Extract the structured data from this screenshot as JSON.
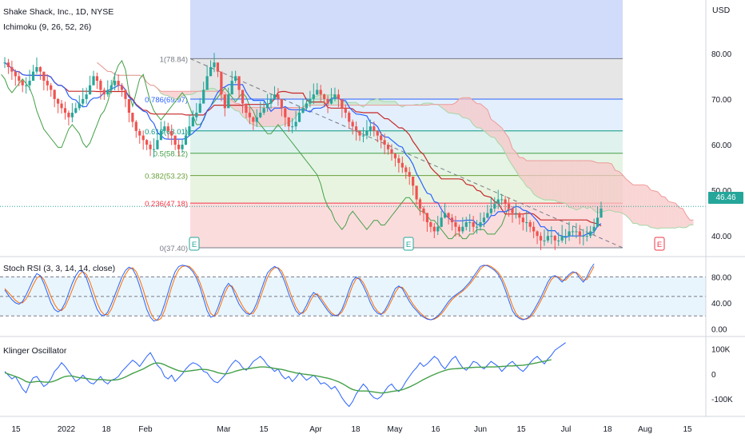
{
  "header": {
    "symbol_title": "Shake Shack, Inc., 1D, NYSE",
    "indicator_label": "Ichimoku (9, 26, 52, 26)",
    "currency": "USD"
  },
  "price_tag": {
    "value": "46.46",
    "color": "#26a69a"
  },
  "fibonacci": {
    "levels": [
      {
        "ratio": "1",
        "price": 78.84,
        "label": "1(78.84)",
        "color": "#787b86"
      },
      {
        "ratio": "0.786",
        "price": 69.97,
        "label": "0.786(69.97)",
        "color": "#2962ff"
      },
      {
        "ratio": "0.618",
        "price": 63.01,
        "label": "0.618(63.01)",
        "color": "#089981"
      },
      {
        "ratio": "0.5",
        "price": 58.12,
        "label": "0.5(58.12)",
        "color": "#43a047"
      },
      {
        "ratio": "0.382",
        "price": 53.23,
        "label": "0.382(53.23)",
        "color": "#689f38"
      },
      {
        "ratio": "0.236",
        "price": 47.18,
        "label": "0.236(47.18)",
        "color": "#f23645"
      },
      {
        "ratio": "0",
        "price": 37.4,
        "label": "0(37.40)",
        "color": "#787b86"
      }
    ],
    "bands": [
      "#d1dbfa",
      "#e6e6e6",
      "#e3effc",
      "#e0f2ee",
      "#e5f4e5",
      "#e8f4e0",
      "#fbdcdd"
    ]
  },
  "earnings_markers": [
    "E",
    "E",
    "E"
  ],
  "chart_data": [
    {
      "type": "candlestick",
      "title": "Shake Shack, Inc., 1D, NYSE",
      "y_axis": {
        "ticks": [
          40,
          50,
          60,
          70,
          80
        ],
        "tick_labels": [
          "40.00",
          "50.00",
          "60.00",
          "70.00",
          "80.00"
        ],
        "range": [
          36,
          91
        ],
        "unit": "USD"
      },
      "x_axis": {
        "tick_labels": [
          "15",
          "2022",
          "18",
          "Feb",
          "Mar",
          "15",
          "Apr",
          "18",
          "May",
          "16",
          "Jun",
          "15",
          "Jul",
          "18",
          "Aug",
          "15"
        ]
      },
      "last_price": 46.46,
      "closes": [
        78,
        77,
        76,
        75,
        74,
        73,
        73,
        74,
        76,
        77,
        76,
        74,
        73,
        72,
        70,
        69,
        68,
        67,
        66,
        67,
        68,
        69,
        70,
        71,
        73,
        75,
        74,
        72,
        71,
        72,
        73,
        74,
        73,
        72,
        70,
        67,
        65,
        63,
        62,
        61,
        60,
        59,
        59,
        61,
        63,
        64,
        63,
        62,
        60,
        59,
        60,
        62,
        64,
        66,
        67,
        69,
        72,
        75,
        77,
        78,
        76,
        71,
        68,
        71,
        74,
        75,
        72,
        69,
        67,
        66,
        65,
        66,
        67,
        68,
        69,
        70,
        71,
        70,
        68,
        66,
        64,
        64,
        65,
        67,
        68,
        69,
        70,
        71,
        72,
        71,
        70,
        69,
        70,
        71,
        70,
        68,
        67,
        65,
        64,
        63,
        62,
        62,
        63,
        64,
        63,
        62,
        61,
        60,
        59,
        58,
        57,
        56,
        55,
        54,
        53,
        51,
        48,
        46,
        45,
        43,
        42,
        41,
        42,
        44,
        45,
        44,
        43,
        42,
        41,
        42,
        43,
        43,
        42,
        42,
        43,
        44,
        45,
        46,
        47,
        48,
        48,
        47,
        46,
        45,
        45,
        44,
        43,
        43,
        42,
        41,
        40,
        39,
        39,
        40,
        40,
        39,
        39,
        40,
        40,
        41,
        41,
        41,
        40,
        40,
        40,
        41,
        42,
        44,
        46
      ],
      "ichimoku": {
        "tenkan_sen": "blue line",
        "kijun_sen": "red line",
        "chikou_span": "green line",
        "cloud_colors": [
          "#f7c7c7",
          "#c8e6c9"
        ]
      }
    },
    {
      "type": "line",
      "title": "Stoch RSI (3, 3, 14, 14, close)",
      "y_axis": {
        "tick_labels": [
          "80.00",
          "40.00",
          "0.00"
        ],
        "ticks": [
          80,
          40,
          0
        ],
        "range": [
          -8,
          110
        ],
        "bands": [
          20,
          50,
          80
        ]
      },
      "series": [
        {
          "name": "",
          "color": "#2962ff",
          "values": [
            60,
            52,
            45,
            40,
            38,
            42,
            52,
            64,
            76,
            85,
            82,
            70,
            55,
            40,
            30,
            26,
            30,
            40,
            55,
            70,
            82,
            90,
            88,
            78,
            62,
            45,
            30,
            22,
            20,
            26,
            38,
            52,
            66,
            80,
            90,
            95,
            92,
            82,
            66,
            48,
            30,
            18,
            12,
            14,
            22,
            38,
            56,
            74,
            88,
            96,
            98,
            97,
            94,
            88,
            78,
            64,
            46,
            28,
            18,
            20,
            32,
            48,
            62,
            70,
            64,
            50,
            38,
            30,
            24,
            22,
            28,
            40,
            56,
            72,
            86,
            92,
            96,
            93,
            84,
            70,
            54,
            40,
            28,
            22,
            26,
            36,
            48,
            56,
            52,
            44,
            36,
            28,
            22,
            20,
            22,
            30,
            44,
            60,
            74,
            80,
            76,
            66,
            54,
            40,
            30,
            24,
            22,
            28,
            38,
            50,
            62,
            66,
            62,
            52,
            42,
            34,
            28,
            22,
            18,
            15,
            14,
            16,
            20,
            26,
            34,
            42,
            48,
            52,
            56,
            60,
            66,
            72,
            80,
            88,
            96,
            98,
            97,
            94,
            90,
            84,
            74,
            60,
            44,
            28,
            20,
            16,
            14,
            16,
            20,
            28,
            38,
            48,
            60,
            72,
            80,
            82,
            78,
            72,
            78,
            84,
            88,
            86,
            78,
            72,
            80,
            92,
            100
          ]
        },
        {
          "name": "",
          "color": "#ff6d00",
          "values": [
            62,
            56,
            50,
            44,
            40,
            40,
            46,
            56,
            68,
            78,
            82,
            76,
            64,
            50,
            38,
            30,
            28,
            34,
            46,
            60,
            74,
            84,
            88,
            84,
            72,
            56,
            40,
            28,
            22,
            22,
            30,
            44,
            58,
            72,
            84,
            92,
            94,
            88,
            76,
            60,
            42,
            26,
            16,
            13,
            16,
            28,
            46,
            64,
            80,
            91,
            96,
            97,
            96,
            91,
            83,
            71,
            55,
            38,
            24,
            19,
            25,
            40,
            55,
            66,
            66,
            57,
            45,
            35,
            27,
            23,
            24,
            33,
            48,
            64,
            79,
            89,
            94,
            94,
            89,
            77,
            62,
            47,
            34,
            25,
            24,
            30,
            42,
            52,
            54,
            48,
            40,
            32,
            25,
            21,
            21,
            26,
            37,
            52,
            67,
            77,
            78,
            71,
            60,
            47,
            35,
            27,
            23,
            25,
            33,
            44,
            56,
            64,
            64,
            57,
            47,
            38,
            31,
            25,
            20,
            16,
            14,
            15,
            18,
            23,
            30,
            38,
            45,
            50,
            54,
            58,
            63,
            69,
            76,
            84,
            92,
            97,
            98,
            96,
            92,
            87,
            79,
            67,
            52,
            36,
            24,
            18,
            15,
            15,
            18,
            24,
            33,
            43,
            54,
            66,
            76,
            81,
            80,
            75,
            75,
            81,
            86,
            87,
            82,
            75,
            76,
            86,
            96
          ]
        }
      ]
    },
    {
      "type": "line",
      "title": "Klinger Oscillator",
      "y_axis": {
        "tick_labels": [
          "100K",
          "0",
          "-100K"
        ],
        "ticks": [
          100,
          0,
          -100
        ],
        "unit": "K",
        "range": [
          -160,
          140
        ]
      },
      "series": [
        {
          "name": "",
          "color": "#2962ff",
          "values": [
            10,
            -5,
            -20,
            -10,
            -35,
            -60,
            -75,
            -40,
            -15,
            -10,
            -30,
            -50,
            -40,
            -20,
            10,
            25,
            45,
            30,
            10,
            -10,
            -30,
            -20,
            -5,
            -20,
            -35,
            -40,
            -25,
            -10,
            -30,
            -40,
            -25,
            -20,
            -10,
            10,
            25,
            40,
            55,
            45,
            30,
            50,
            70,
            85,
            60,
            35,
            20,
            -10,
            -20,
            -5,
            -30,
            -15,
            0,
            20,
            35,
            45,
            40,
            30,
            10,
            5,
            -15,
            -30,
            -35,
            -20,
            -5,
            20,
            40,
            55,
            45,
            25,
            15,
            30,
            50,
            60,
            70,
            55,
            35,
            25,
            10,
            20,
            -5,
            -20,
            -10,
            -30,
            -15,
            5,
            -10,
            -25,
            -15,
            -5,
            -20,
            -40,
            -35,
            -45,
            -60,
            -50,
            -70,
            -95,
            -115,
            -130,
            -110,
            -80,
            -60,
            -40,
            -55,
            -80,
            -95,
            -100,
            -90,
            -70,
            -50,
            -40,
            -60,
            -70,
            -55,
            -30,
            -10,
            10,
            25,
            45,
            30,
            40,
            55,
            70,
            60,
            35,
            20,
            40,
            60,
            70,
            45,
            25,
            15,
            30,
            50,
            45,
            30,
            20,
            35,
            50,
            40,
            30,
            10,
            25,
            40,
            50,
            35,
            20,
            10,
            25,
            45,
            60,
            70,
            55,
            40,
            60,
            75,
            95,
            105,
            115,
            125
          ]
        },
        {
          "name": "",
          "color": "#43a047",
          "values": [
            5,
            0,
            -5,
            -10,
            -15,
            -22,
            -30,
            -34,
            -32,
            -30,
            -30,
            -32,
            -33,
            -32,
            -28,
            -22,
            -15,
            -10,
            -8,
            -8,
            -12,
            -15,
            -16,
            -18,
            -20,
            -22,
            -23,
            -22,
            -23,
            -25,
            -25,
            -24,
            -22,
            -18,
            -12,
            -5,
            2,
            8,
            14,
            20,
            28,
            36,
            42,
            44,
            42,
            37,
            30,
            24,
            18,
            13,
            10,
            10,
            12,
            14,
            16,
            18,
            18,
            17,
            14,
            10,
            5,
            2,
            0,
            2,
            6,
            11,
            15,
            18,
            20,
            22,
            24,
            26,
            28,
            28,
            27,
            25,
            22,
            20,
            18,
            15,
            11,
            8,
            4,
            2,
            0,
            -2,
            -4,
            -6,
            -8,
            -11,
            -14,
            -17,
            -21,
            -26,
            -31,
            -38,
            -46,
            -55,
            -62,
            -66,
            -68,
            -68,
            -68,
            -70,
            -72,
            -74,
            -76,
            -75,
            -73,
            -70,
            -68,
            -66,
            -63,
            -58,
            -52,
            -45,
            -38,
            -30,
            -22,
            -15,
            -8,
            -2,
            4,
            9,
            14,
            18,
            20,
            21,
            22,
            23,
            24,
            25,
            26,
            27,
            27,
            27,
            28,
            28,
            28,
            29,
            30,
            31,
            32,
            32,
            33,
            34,
            35,
            37,
            39,
            42,
            45,
            48,
            51,
            54,
            57
          ]
        }
      ]
    }
  ],
  "stoch_title": "Stoch RSI (3, 3, 14, 14, close)",
  "klinger_title": "Klinger Oscillator"
}
